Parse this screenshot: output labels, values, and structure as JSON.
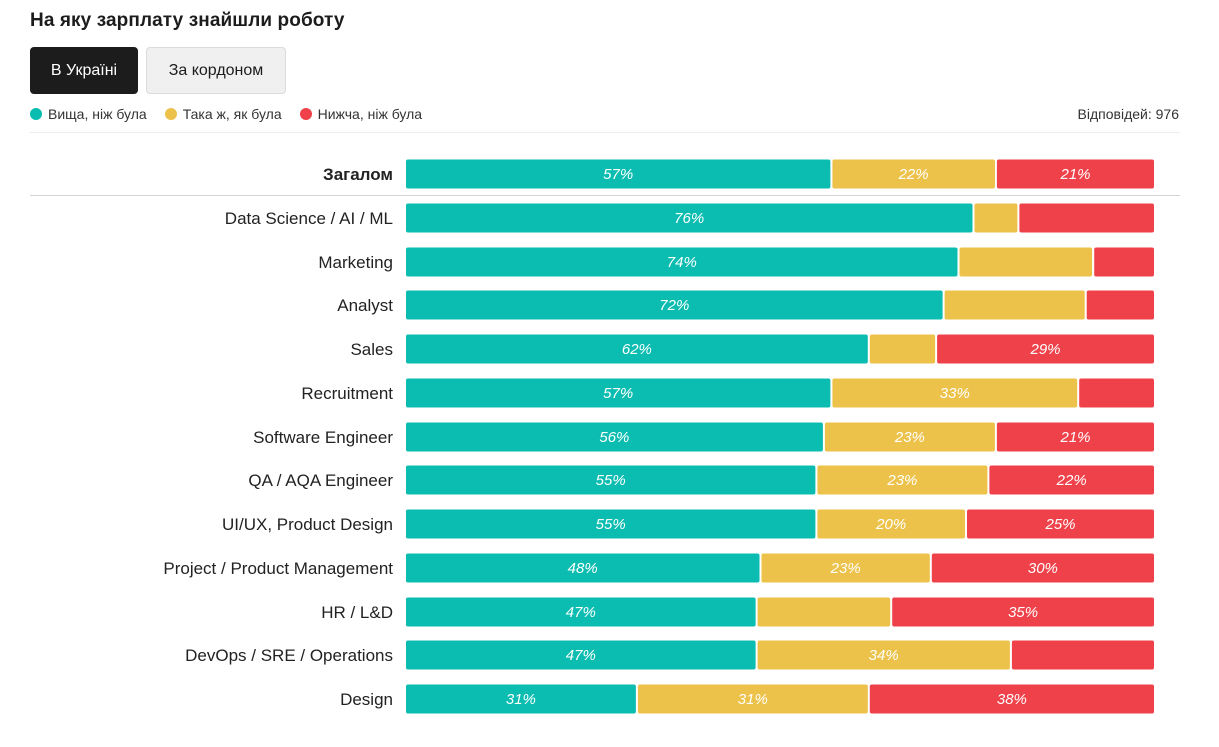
{
  "title": "На яку зарплату знайшли роботу",
  "tabs": [
    {
      "label": "В Україні",
      "active": true
    },
    {
      "label": "За кордоном",
      "active": false
    }
  ],
  "legend": [
    {
      "label": "Вища, ніж була",
      "color": "#0bbcb0"
    },
    {
      "label": "Така ж, як була",
      "color": "#ecc24a"
    },
    {
      "label": "Нижча, ніж була",
      "color": "#ee4149"
    }
  ],
  "responses": "Відповідей: 976",
  "chart_data": {
    "type": "bar",
    "orientation": "horizontal",
    "stacked": true,
    "percent": true,
    "xlim": [
      0,
      100
    ],
    "series": [
      {
        "name": "Вища, ніж була",
        "color": "#0bbcb0",
        "values": [
          57,
          76,
          74,
          72,
          62,
          57,
          56,
          55,
          55,
          48,
          47,
          47,
          31
        ]
      },
      {
        "name": "Така ж, як була",
        "color": "#ecc24a",
        "values": [
          22,
          6,
          18,
          19,
          9,
          33,
          23,
          23,
          20,
          23,
          18,
          34,
          31
        ]
      },
      {
        "name": "Нижча, ніж була",
        "color": "#ee4149",
        "values": [
          21,
          18,
          8,
          9,
          29,
          10,
          21,
          22,
          25,
          30,
          35,
          19,
          38
        ]
      }
    ],
    "labels_shown": [
      [
        "57%",
        "22%",
        "21%"
      ],
      [
        "76%",
        "",
        ""
      ],
      [
        "74%",
        "",
        ""
      ],
      [
        "72%",
        "",
        ""
      ],
      [
        "62%",
        "",
        "29%"
      ],
      [
        "57%",
        "33%",
        ""
      ],
      [
        "56%",
        "23%",
        "21%"
      ],
      [
        "55%",
        "23%",
        "22%"
      ],
      [
        "55%",
        "20%",
        "25%"
      ],
      [
        "48%",
        "23%",
        "30%"
      ],
      [
        "47%",
        "",
        "35%"
      ],
      [
        "47%",
        "34%",
        ""
      ],
      [
        "31%",
        "31%",
        "38%"
      ]
    ],
    "categories": [
      "Загалом",
      "Data Science / AI / ML",
      "Marketing",
      "Analyst",
      "Sales",
      "Recruitment",
      "Software Engineer",
      "QA / AQA Engineer",
      "UI/UX, Product Design",
      "Project / Product Management",
      "HR / L&D",
      "DevOps / SRE / Operations",
      "Design"
    ],
    "emphasized_category": "Загалом"
  }
}
